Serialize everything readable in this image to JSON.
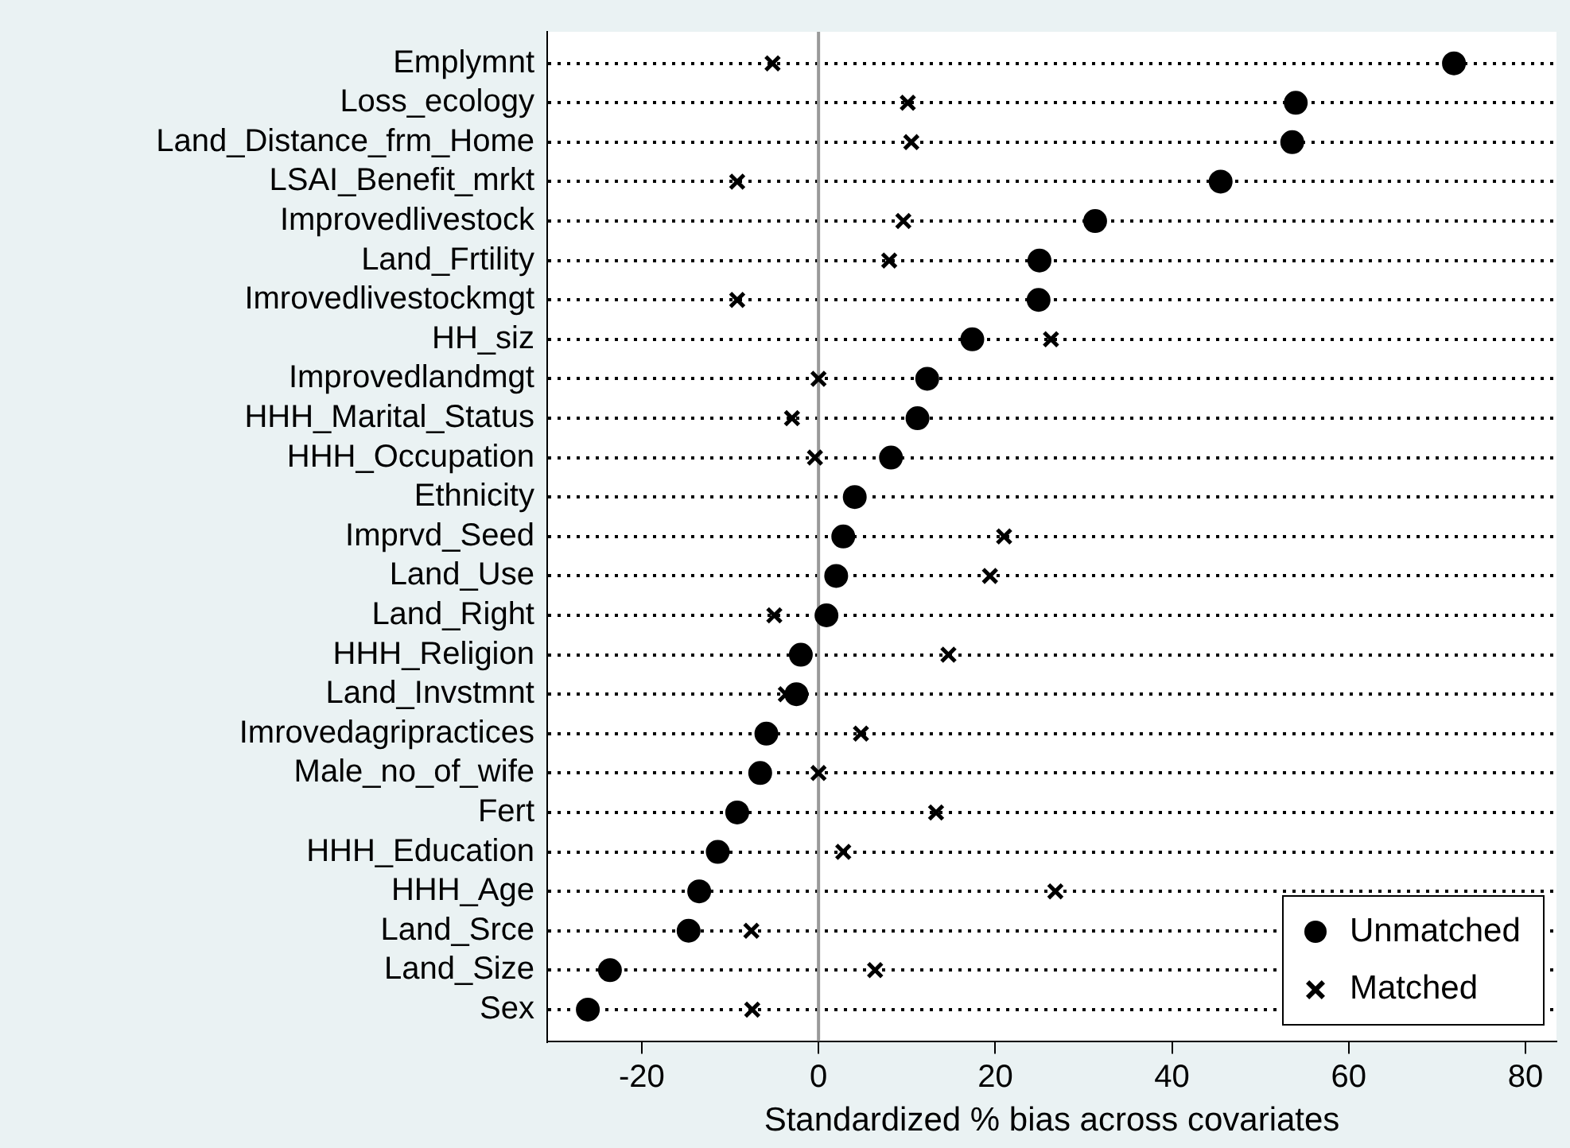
{
  "chart_data": {
    "type": "scatter",
    "xlabel": "Standardized % bias across covariates",
    "categories": [
      "Emplymnt",
      "Loss_ecology",
      "Land_Distance_frm_Home",
      "LSAI_Benefit_mrkt",
      "Improvedlivestock",
      "Land_Frtility",
      "Imrovedlivestockmgt",
      "HH_siz",
      "Improvedlandmgt",
      "HHH_Marital_Status",
      "HHH_Occupation",
      "Ethnicity",
      "Imprvd_Seed",
      "Land_Use",
      "Land_Right",
      "HHH_Religion",
      "Land_Invstmnt",
      "Imrovedagripractices",
      "Male_no_of_wife",
      "Fert",
      "HHH_Education",
      "HHH_Age",
      "Land_Srce",
      "Land_Size",
      "Sex"
    ],
    "series": [
      {
        "name": "Unmatched",
        "color": "#000000",
        "marker": "circle",
        "values": [
          71.9,
          54.0,
          53.6,
          45.5,
          31.3,
          25.0,
          24.9,
          17.4,
          12.3,
          11.2,
          8.2,
          4.1,
          2.8,
          2.0,
          0.9,
          -2.0,
          -2.5,
          -5.9,
          -6.6,
          -9.2,
          -11.4,
          -13.5,
          -14.7,
          -23.6,
          -26.1
        ]
      },
      {
        "name": "Matched",
        "color": "#000000",
        "marker": "cross",
        "values": [
          -5.2,
          10.1,
          10.5,
          -9.2,
          9.6,
          8.0,
          -9.2,
          26.3,
          0,
          -3.0,
          -0.4,
          null,
          21.0,
          19.4,
          -5.0,
          14.7,
          -3.7,
          4.8,
          0,
          13.3,
          2.8,
          26.8,
          -7.6,
          6.4,
          -7.5
        ]
      }
    ],
    "xlim": [
      -30.7,
      83.5
    ],
    "xticks": [
      -20,
      0,
      20,
      40,
      60,
      80
    ],
    "ref_lines": [
      {
        "axis": "x",
        "value": 0,
        "color": "#999999"
      }
    ],
    "grid": "y",
    "line_style": "dotted",
    "legend": "bottom right",
    "orientation": "horizontal"
  }
}
